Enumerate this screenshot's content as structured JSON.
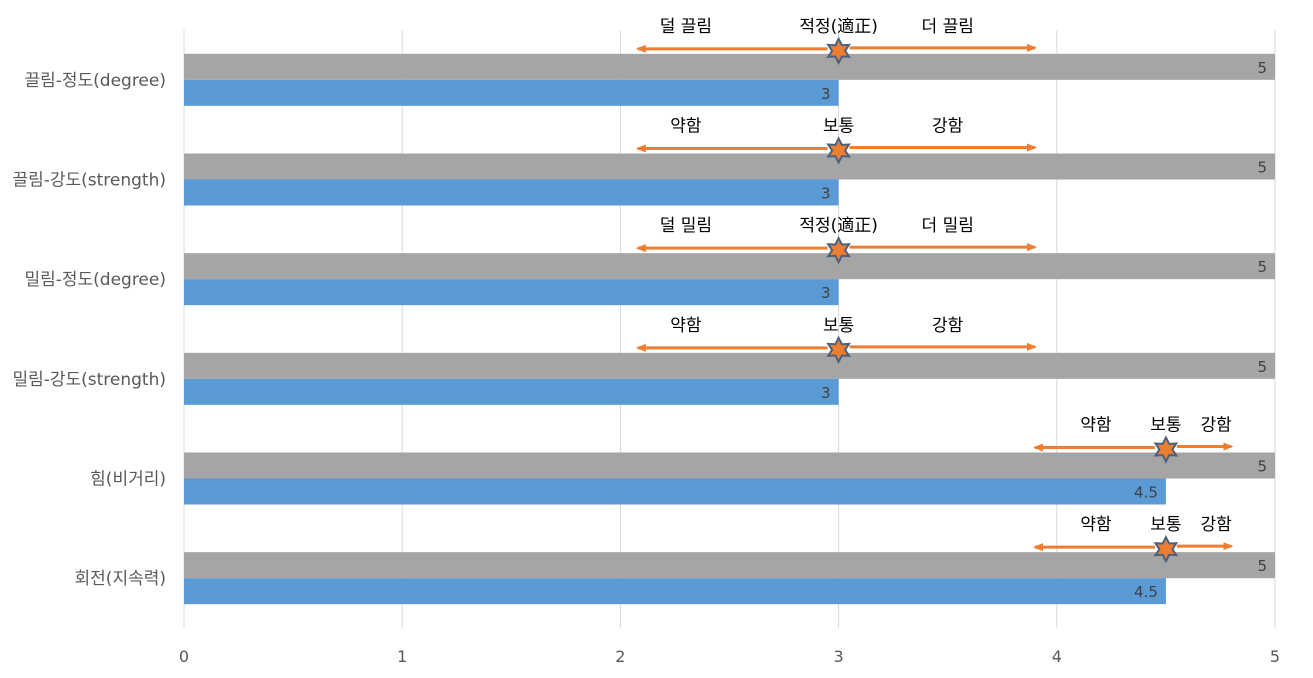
{
  "chart_data": {
    "type": "bar",
    "orientation": "horizontal",
    "categories": [
      "끌림-정도(degree)",
      "끌림-강도(strength)",
      "밀림-정도(degree)",
      "밀림-강도(strength)",
      "힘(비거리)",
      "회전(지속력)"
    ],
    "series": [
      {
        "values": [
          5,
          5,
          5,
          5,
          5,
          5
        ],
        "color": "#A5A5A5"
      },
      {
        "values": [
          3,
          3,
          3,
          3,
          4.5,
          4.5
        ],
        "color": "#5B9BD5"
      }
    ],
    "data_labels": {
      "series_0": [
        "5",
        "5",
        "5",
        "5",
        "5",
        "5"
      ],
      "series_1": [
        "3",
        "3",
        "3",
        "3",
        "4.5",
        "4.5"
      ]
    },
    "xlim": [
      0,
      5
    ],
    "xticks": [
      0,
      1,
      2,
      3,
      4,
      5
    ],
    "tick_labels": [
      "0",
      "1",
      "2",
      "3",
      "4",
      "5"
    ],
    "grid": "vertical",
    "legend": "none",
    "annotations": [
      {
        "center": 3,
        "left_end": 2.08,
        "right_end": 3.9,
        "left": "덜 끌림",
        "mid": "적정(適正)",
        "right": "더 끌림"
      },
      {
        "center": 3,
        "left_end": 2.08,
        "right_end": 3.9,
        "left": "약함",
        "mid": "보통",
        "right": "강함"
      },
      {
        "center": 3,
        "left_end": 2.08,
        "right_end": 3.9,
        "left": "덜 밀림",
        "mid": "적정(適正)",
        "right": "더 밀림"
      },
      {
        "center": 3,
        "left_end": 2.08,
        "right_end": 3.9,
        "left": "약함",
        "mid": "보통",
        "right": "강함"
      },
      {
        "center": 4.5,
        "left_end": 3.9,
        "right_end": 4.8,
        "left": "약함",
        "mid": "보통",
        "right": "강함"
      },
      {
        "center": 4.5,
        "left_end": 3.9,
        "right_end": 4.8,
        "left": "약함",
        "mid": "보통",
        "right": "강함"
      }
    ],
    "colors": {
      "annotation_arrow": "#ED7D31",
      "star_fill": "#ED7D31",
      "star_stroke": "#4A607F"
    }
  }
}
